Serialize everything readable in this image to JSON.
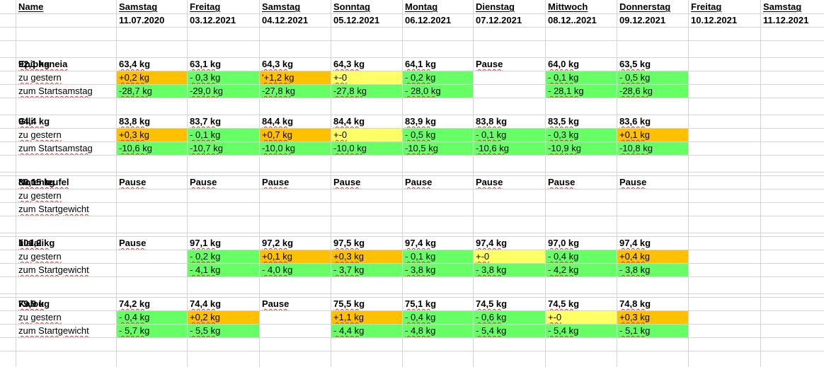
{
  "colors": {
    "orange": "#ffc000",
    "green": "#66ff66",
    "yellow": "#ffff66",
    "grid": "#d4d4d4"
  },
  "header": {
    "name": "Name",
    "days": [
      {
        "day": "Samstag",
        "date": "11.07.2020"
      },
      {
        "day": "Freitag",
        "date": "03.12.2021"
      },
      {
        "day": "Samstag",
        "date": "04.12.2021"
      },
      {
        "day": "Sonntag",
        "date": "05.12.2021"
      },
      {
        "day": "Montag",
        "date": "06.12.2021"
      },
      {
        "day": "Dienstag",
        "date": "07.12.2021"
      },
      {
        "day": "Mittwoch",
        "date": "08.12..2021"
      },
      {
        "day": "Donnerstag",
        "date": "09.12.2021"
      },
      {
        "day": "Freitag",
        "date": "10.12.2021"
      },
      {
        "day": "Samstag",
        "date": "11.12.2021"
      }
    ]
  },
  "persons": [
    {
      "name": "Epiphaneia",
      "label_yesterday": "zu gestern",
      "label_start": "zum Startsamstag",
      "weights": [
        "92,1 kg",
        "63,4 kg",
        "63,1 kg",
        "64,3 kg",
        "64,3 kg",
        "64,1 kg",
        "Pause",
        "64,0 kg",
        "63,5 kg",
        ""
      ],
      "yesterday": [
        {
          "v": "",
          "c": ""
        },
        {
          "v": "+0,2 kg",
          "c": "orange"
        },
        {
          "v": "- 0,3 kg",
          "c": "green"
        },
        {
          "v": "'+1,2 kg",
          "c": "orange"
        },
        {
          "v": "+-0",
          "c": "yellow"
        },
        {
          "v": "- 0,2 kg",
          "c": "green"
        },
        {
          "v": "",
          "c": ""
        },
        {
          "v": "- 0,1 kg",
          "c": "green"
        },
        {
          "v": "- 0,5 kg",
          "c": "green"
        },
        {
          "v": "",
          "c": ""
        }
      ],
      "start": [
        {
          "v": "",
          "c": ""
        },
        {
          "v": "-28,7 kg",
          "c": "green"
        },
        {
          "v": "-29,0 kg",
          "c": "green"
        },
        {
          "v": "-27,8 kg",
          "c": "green"
        },
        {
          "v": "-27,8 kg",
          "c": "green"
        },
        {
          "v": "- 28,0 kg",
          "c": "green"
        },
        {
          "v": "",
          "c": ""
        },
        {
          "v": "- 28,1 kg",
          "c": "green"
        },
        {
          "v": "-28,6 kg",
          "c": "green"
        },
        {
          "v": "",
          "c": ""
        }
      ]
    },
    {
      "name": "Gili",
      "label_yesterday": "zu gestern",
      "label_start": "zum Startsamstag",
      "weights": [
        "94,4 kg",
        "83,8 kg",
        "83,7 kg",
        "84,4 kg",
        "84,4 kg",
        "83,9 kg",
        "83,8 kg",
        "83,5 kg",
        "83,6 kg",
        ""
      ],
      "yesterday": [
        {
          "v": "",
          "c": ""
        },
        {
          "v": "+0,3 kg",
          "c": "orange"
        },
        {
          "v": "- 0,1 kg",
          "c": "green"
        },
        {
          "v": "+0,7 kg",
          "c": "orange"
        },
        {
          "v": "+-0",
          "c": "yellow"
        },
        {
          "v": "- 0,5 kg",
          "c": "green"
        },
        {
          "v": "- 0,1 kg",
          "c": "green"
        },
        {
          "v": "- 0,3 kg",
          "c": "green"
        },
        {
          "v": "+0,1 kg",
          "c": "orange"
        },
        {
          "v": "",
          "c": ""
        }
      ],
      "start": [
        {
          "v": "",
          "c": ""
        },
        {
          "v": "-10,6 kg",
          "c": "green"
        },
        {
          "v": "-10,7 kg",
          "c": "green"
        },
        {
          "v": "-10,0 kg",
          "c": "green"
        },
        {
          "v": "-10,0 kg",
          "c": "green"
        },
        {
          "v": "-10,5 kg",
          "c": "green"
        },
        {
          "v": "-10,6 kg",
          "c": "green"
        },
        {
          "v": "-10,9 kg",
          "c": "green"
        },
        {
          "v": "-10,8 kg",
          "c": "green"
        },
        {
          "v": "",
          "c": ""
        }
      ]
    },
    {
      "name": "Notenteufel",
      "label_yesterday": "zu gestern",
      "label_start": "zum Startgewicht",
      "weights": [
        "80,15 kg",
        "Pause",
        "Pause",
        "Pause",
        "Pause",
        "Pause",
        "Pause",
        "Pause",
        "Pause",
        ""
      ],
      "yesterday": [
        {
          "v": "",
          "c": ""
        },
        {
          "v": "",
          "c": ""
        },
        {
          "v": "",
          "c": ""
        },
        {
          "v": "",
          "c": ""
        },
        {
          "v": "",
          "c": ""
        },
        {
          "v": "",
          "c": ""
        },
        {
          "v": "",
          "c": ""
        },
        {
          "v": "",
          "c": ""
        },
        {
          "v": "",
          "c": ""
        },
        {
          "v": "",
          "c": ""
        }
      ],
      "start": [
        {
          "v": "",
          "c": ""
        },
        {
          "v": "",
          "c": ""
        },
        {
          "v": "",
          "c": ""
        },
        {
          "v": "",
          "c": ""
        },
        {
          "v": "",
          "c": ""
        },
        {
          "v": "",
          "c": ""
        },
        {
          "v": "",
          "c": ""
        },
        {
          "v": "",
          "c": ""
        },
        {
          "v": "",
          "c": ""
        },
        {
          "v": "",
          "c": ""
        }
      ]
    },
    {
      "name": "lilalali",
      "label_yesterday": "zu gestern",
      "label_start": "zum Startgewicht",
      "weights": [
        "101,2 kg",
        "Pause",
        "97,1 kg",
        "97,2 kg",
        "97,5 kg",
        "97,4 kg",
        "97,4 kg",
        "97,0 kg",
        "97,4 kg",
        ""
      ],
      "yesterday": [
        {
          "v": "",
          "c": ""
        },
        {
          "v": "",
          "c": ""
        },
        {
          "v": "- 0,2 kg",
          "c": "green"
        },
        {
          "v": "+0,1 kg",
          "c": "orange"
        },
        {
          "v": "+0,3 kg",
          "c": "orange"
        },
        {
          "v": "- 0,1 kg",
          "c": "green"
        },
        {
          "v": "+-0",
          "c": "yellow"
        },
        {
          "v": "- 0,4 kg",
          "c": "green"
        },
        {
          "v": "+0,4 kg",
          "c": "orange"
        },
        {
          "v": "",
          "c": ""
        }
      ],
      "start": [
        {
          "v": "",
          "c": ""
        },
        {
          "v": "",
          "c": ""
        },
        {
          "v": "- 4,1 kg",
          "c": "green"
        },
        {
          "v": "- 4,0 kg",
          "c": "green"
        },
        {
          "v": "- 3,7 kg",
          "c": "green"
        },
        {
          "v": "- 3,8 kg",
          "c": "green"
        },
        {
          "v": "- 3,8 kg",
          "c": "green"
        },
        {
          "v": "- 4,2 kg",
          "c": "green"
        },
        {
          "v": "- 3,8 kg",
          "c": "green"
        },
        {
          "v": "",
          "c": ""
        }
      ]
    },
    {
      "name": "Kalou",
      "label_yesterday": "zu gestern",
      "label_start": "zum Startgewicht",
      "weights": [
        "79,9 kg",
        "74,2 kg",
        "74,4 kg",
        "Pause",
        "75,5 kg",
        "75,1 kg",
        "74,5 kg",
        "74,5 kg",
        "74,8 kg",
        ""
      ],
      "yesterday": [
        {
          "v": "",
          "c": ""
        },
        {
          "v": "- 0,4 kg",
          "c": "green"
        },
        {
          "v": "+0,2 kg",
          "c": "orange"
        },
        {
          "v": "",
          "c": ""
        },
        {
          "v": "+1,1 kg",
          "c": "orange"
        },
        {
          "v": "- 0,4 kg",
          "c": "green"
        },
        {
          "v": "- 0,6 kg",
          "c": "green"
        },
        {
          "v": "+-0",
          "c": "yellow"
        },
        {
          "v": "+0,3 kg",
          "c": "orange"
        },
        {
          "v": "",
          "c": ""
        }
      ],
      "start": [
        {
          "v": "",
          "c": ""
        },
        {
          "v": "- 5,7 kg",
          "c": "green"
        },
        {
          "v": "- 5,5 kg",
          "c": "green"
        },
        {
          "v": "",
          "c": ""
        },
        {
          "v": "- 4,4 kg",
          "c": "green"
        },
        {
          "v": "- 4,8 kg",
          "c": "green"
        },
        {
          "v": "- 5,4 kg",
          "c": "green"
        },
        {
          "v": "- 5,4 kg",
          "c": "green"
        },
        {
          "v": "- 5,1 kg",
          "c": "green"
        },
        {
          "v": "",
          "c": ""
        }
      ]
    }
  ]
}
